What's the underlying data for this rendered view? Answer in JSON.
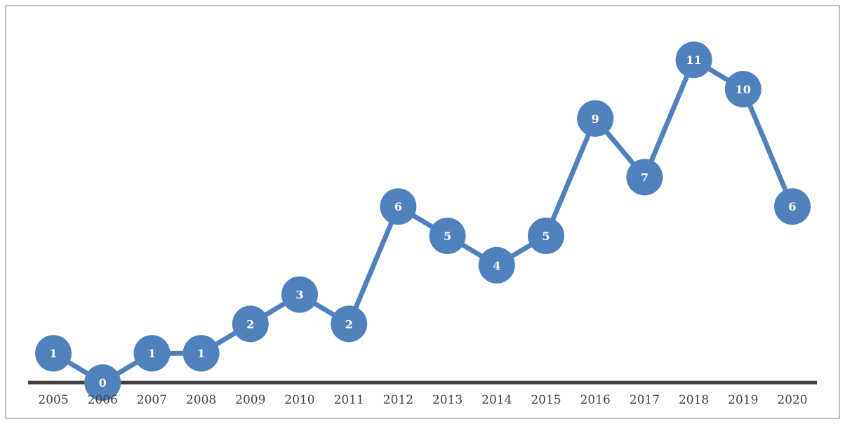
{
  "colors": {
    "series": "#4f81bd",
    "axis": "#404040",
    "label_text": "#ffffff",
    "frame": "#bfbfbf"
  },
  "chart_data": {
    "type": "line",
    "title": "",
    "xlabel": "",
    "ylabel": "",
    "categories": [
      "2005",
      "2006",
      "2007",
      "2008",
      "2009",
      "2010",
      "2011",
      "2012",
      "2013",
      "2014",
      "2015",
      "2016",
      "2017",
      "2018",
      "2019",
      "2020"
    ],
    "series": [
      {
        "values": [
          1,
          0,
          1,
          1,
          2,
          3,
          2,
          6,
          5,
          4,
          5,
          9,
          7,
          11,
          10,
          6
        ]
      }
    ],
    "ylim": [
      0,
      12
    ],
    "grid": false,
    "legend": "none",
    "data_labels": true,
    "markers": "large circles"
  }
}
